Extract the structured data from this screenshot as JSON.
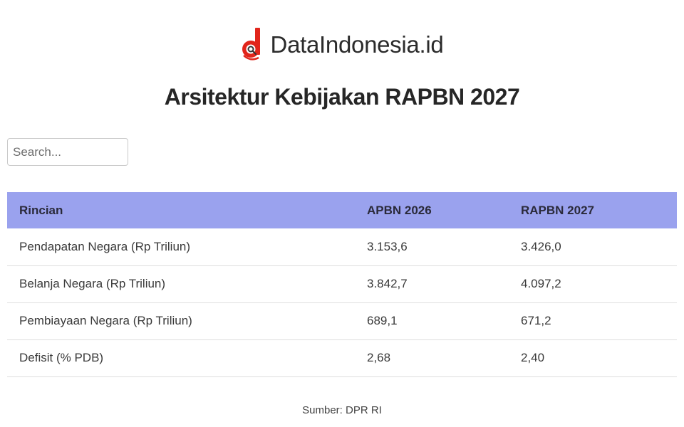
{
  "brand": {
    "name": "DataIndonesia.id",
    "logo_icon": "dataindonesia-logo-icon",
    "accent_color": "#e1251b"
  },
  "page_title": "Arsitektur Kebijakan RAPBN 2027",
  "search": {
    "placeholder": "Search...",
    "value": ""
  },
  "table": {
    "header_color": "#9aa2ee",
    "columns": [
      "Rincian",
      "APBN 2026",
      "RAPBN 2027"
    ],
    "rows": [
      [
        "Pendapatan Negara (Rp Triliun)",
        "3.153,6",
        "3.426,0"
      ],
      [
        "Belanja Negara (Rp Triliun)",
        "3.842,7",
        "4.097,2"
      ],
      [
        "Pembiayaan Negara (Rp Triliun)",
        "689,1",
        "671,2"
      ],
      [
        "Defisit (% PDB)",
        "2,68",
        "2,40"
      ]
    ]
  },
  "source": "Sumber: DPR RI"
}
